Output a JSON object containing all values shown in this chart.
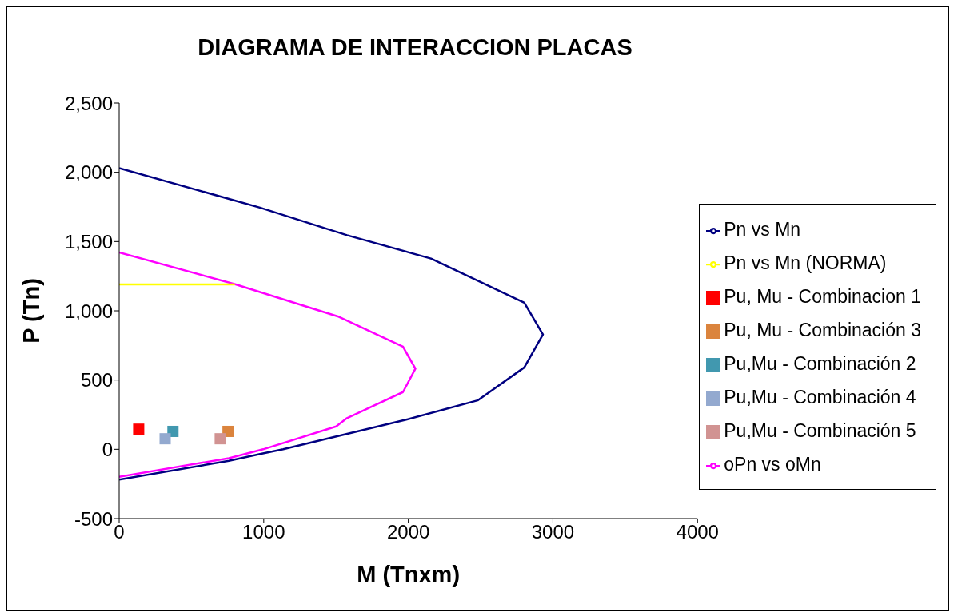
{
  "chart_data": {
    "type": "line",
    "title": "DIAGRAMA DE INTERACCION PLACAS",
    "xlabel": "M (Tnxm)",
    "ylabel": "P (Tn)",
    "xlim": [
      0,
      4000
    ],
    "xticks": [
      0,
      1000,
      2000,
      3000,
      4000
    ],
    "ylim": [
      -500,
      2500
    ],
    "yticks": [
      {
        "value": -500,
        "label": "-500"
      },
      0,
      500,
      {
        "value": 1000,
        "label": "1,000"
      },
      {
        "value": 1500,
        "label": "1,500"
      },
      {
        "value": 2000,
        "label": "2,000"
      },
      {
        "value": 2500,
        "label": "2,500"
      }
    ],
    "grid": false,
    "legend": "right",
    "marker": "none",
    "series": [
      {
        "name": "Pn vs Mn",
        "color": "#000080",
        "x": [
          0,
          974,
          1576,
          2157,
          2802,
          2931,
          2802,
          2479,
          1985,
          1135,
          974,
          759,
          0
        ],
        "values": [
          2030,
          1745,
          1546,
          1377,
          1058,
          829,
          591,
          353,
          214,
          0,
          -34,
          -83,
          -219
        ]
      },
      {
        "name": "oPn vs oMn",
        "color": "#ff00ff",
        "x": [
          0,
          802,
          1512,
          1963,
          2049,
          1963,
          1576,
          1501,
          996,
          759,
          0
        ],
        "values": [
          1421,
          1192,
          960,
          741,
          582,
          413,
          225,
          165,
          0,
          -64,
          -199
        ]
      },
      {
        "name": "Pn vs Mn (NORMA)",
        "color": "#ffff00",
        "x": [
          0,
          800
        ],
        "values": [
          1190,
          1190
        ]
      },
      {
        "name": "Pu, Mu - Combinacion 1",
        "type": "scatter",
        "marker": "square",
        "color": "#ff0000",
        "x": [
          135
        ],
        "values": [
          145
        ]
      },
      {
        "name": "Pu,Mu - Combinación 2",
        "type": "scatter",
        "marker": "square",
        "color": "#4198af",
        "x": [
          372
        ],
        "values": [
          129
        ]
      },
      {
        "name": "Pu, Mu - Combinación 3",
        "type": "scatter",
        "marker": "square",
        "color": "#db843d",
        "x": [
          753
        ],
        "values": [
          129
        ]
      },
      {
        "name": "Pu,Mu - Combinación 4",
        "type": "scatter",
        "marker": "square",
        "color": "#93a9cf",
        "x": [
          318
        ],
        "values": [
          76
        ]
      },
      {
        "name": "Pu,Mu - Combinación 5",
        "type": "scatter",
        "marker": "square",
        "color": "#d19392",
        "x": [
          699
        ],
        "values": [
          76
        ]
      }
    ]
  }
}
